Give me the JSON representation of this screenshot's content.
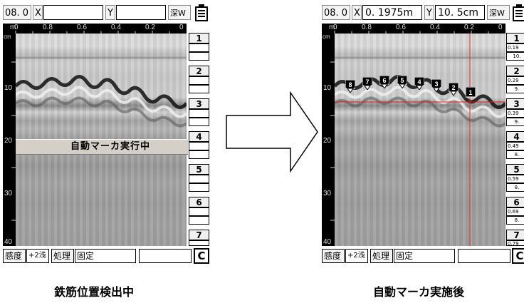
{
  "left_panel": {
    "depth_value": "08. 0",
    "x_label": "X",
    "x_value": "",
    "y_label": "Y",
    "y_value": "",
    "mode_label": "深W",
    "ruler_unit_top": "m",
    "ruler_unit_side": "cm",
    "ruler_x_ticks": [
      "0",
      "0.8",
      "0.6",
      "0.4",
      "0.2",
      "0"
    ],
    "ruler_y_ticks": [
      "10",
      "20",
      "30",
      "40"
    ],
    "side_numbers": [
      "1",
      "2",
      "3",
      "4",
      "5",
      "6",
      "7"
    ],
    "banner": "自動マーカ実行中",
    "sensitivity_label": "感度",
    "sensitivity_value": "+2浅",
    "process_label": "処理",
    "process_value": "固定",
    "clear_label": "C",
    "caption": "鉄筋位置検出中"
  },
  "right_panel": {
    "depth_value": "08. 0",
    "x_label": "X",
    "x_value": "0. 1975m",
    "y_label": "Y",
    "y_value": "10. 5cm",
    "mode_label": "深W",
    "ruler_unit_top": "m",
    "ruler_unit_side": "cm",
    "ruler_x_ticks": [
      "0",
      "0.8",
      "0.6",
      "0.4",
      "0.2",
      "0"
    ],
    "ruler_y_ticks": [
      "10",
      "20",
      "30",
      "40"
    ],
    "side_items": [
      {
        "num": "1",
        "val": "0.19",
        "sub": "10."
      },
      {
        "num": "2",
        "val": "0.29",
        "sub": "9."
      },
      {
        "num": "3",
        "val": "0.39",
        "sub": "9."
      },
      {
        "num": "4",
        "val": "0.49",
        "sub": "8."
      },
      {
        "num": "5",
        "val": "0.59",
        "sub": "8."
      },
      {
        "num": "6",
        "val": "0.69",
        "sub": "8."
      },
      {
        "num": "7",
        "val": "0.79",
        "sub": "8."
      }
    ],
    "markers": [
      "8",
      "7",
      "6",
      "5",
      "4",
      "3",
      "2",
      "1"
    ],
    "sensitivity_label": "感度",
    "sensitivity_value": "+2浅",
    "process_label": "処理",
    "process_value": "固定",
    "clear_label": "C",
    "caption": "自動マーカ実施後"
  },
  "colors": {
    "cursor_line": "#e0201a",
    "marker_fill": "#000000",
    "marker_text": "#ffffff"
  }
}
